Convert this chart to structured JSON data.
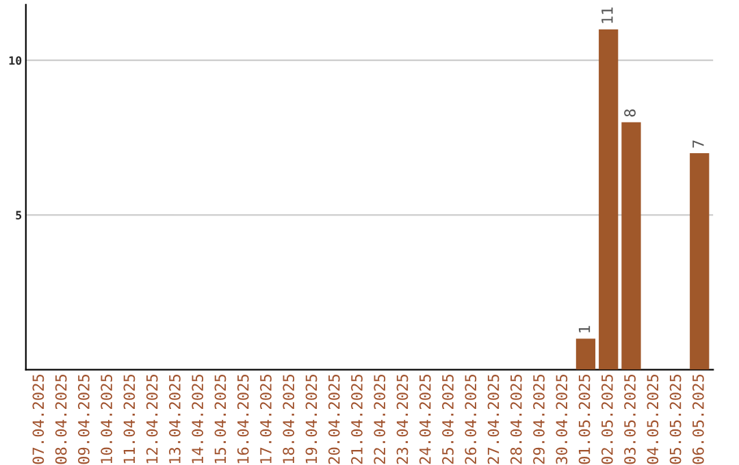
{
  "chart_data": {
    "type": "bar",
    "categories": [
      "07.04.2025",
      "08.04.2025",
      "09.04.2025",
      "10.04.2025",
      "11.04.2025",
      "12.04.2025",
      "13.04.2025",
      "14.04.2025",
      "15.04.2025",
      "16.04.2025",
      "17.04.2025",
      "18.04.2025",
      "19.04.2025",
      "20.04.2025",
      "21.04.2025",
      "22.04.2025",
      "23.04.2025",
      "24.04.2025",
      "25.04.2025",
      "26.04.2025",
      "27.04.2025",
      "28.04.2025",
      "29.04.2025",
      "30.04.2025",
      "01.05.2025",
      "02.05.2025",
      "03.05.2025",
      "04.05.2025",
      "05.05.2025",
      "06.05.2025"
    ],
    "values": [
      0,
      0,
      0,
      0,
      0,
      0,
      0,
      0,
      0,
      0,
      0,
      0,
      0,
      0,
      0,
      0,
      0,
      0,
      0,
      0,
      0,
      0,
      0,
      0,
      1,
      11,
      8,
      0,
      0,
      7
    ],
    "value_labels": [
      null,
      null,
      null,
      null,
      null,
      null,
      null,
      null,
      null,
      null,
      null,
      null,
      null,
      null,
      null,
      null,
      null,
      null,
      null,
      null,
      null,
      null,
      null,
      null,
      "1",
      "11",
      "8",
      null,
      null,
      "7"
    ],
    "color": "#a0582a",
    "ylim": [
      0,
      11.8
    ],
    "yticks": [
      5,
      10
    ],
    "grid": "y"
  }
}
